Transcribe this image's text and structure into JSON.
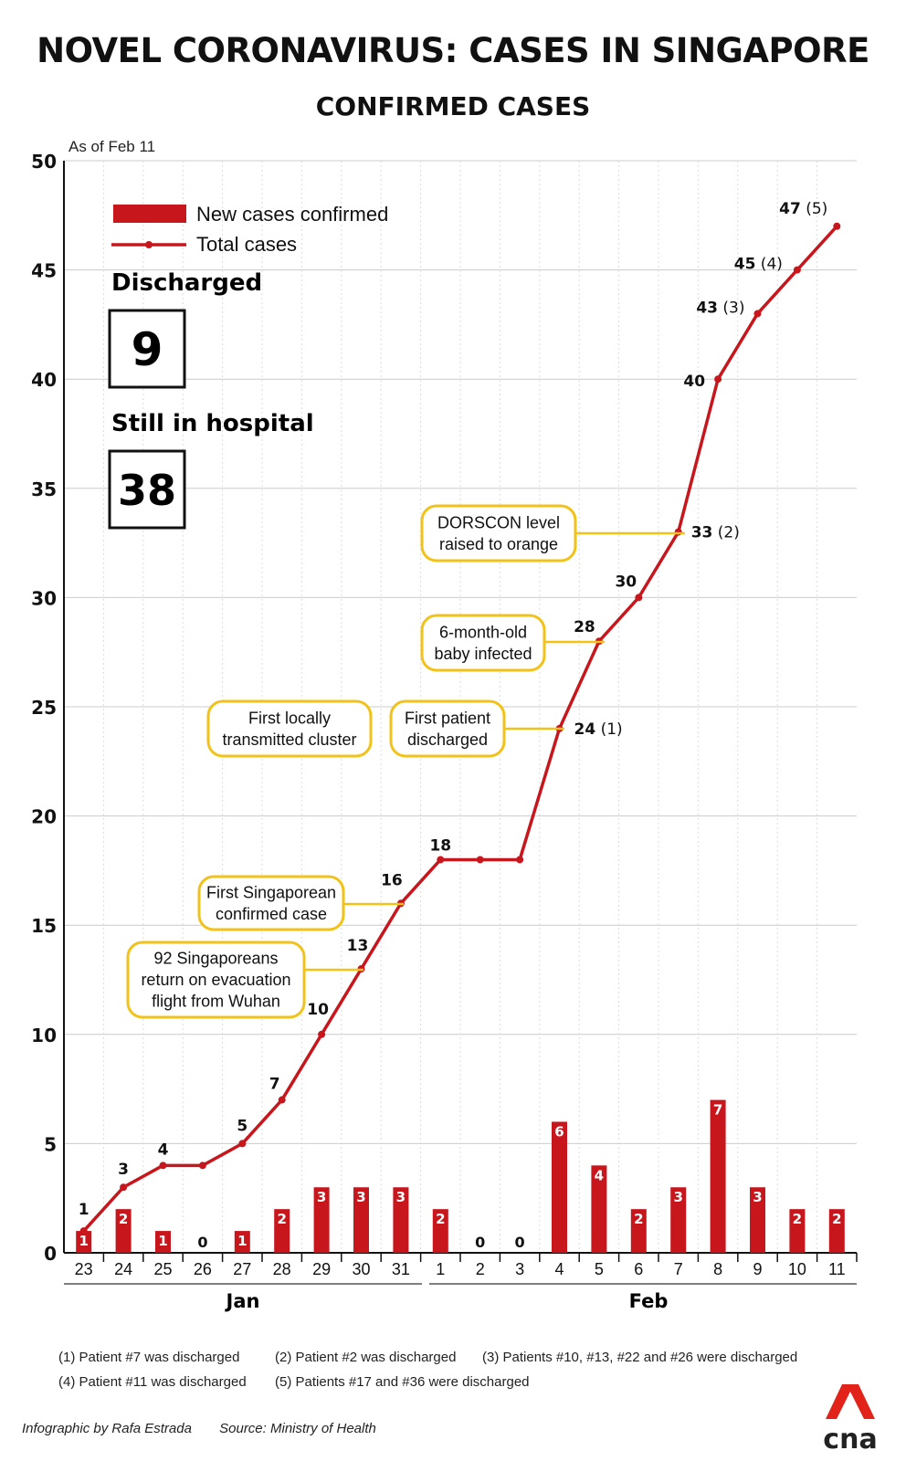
{
  "title": "NOVEL CORONAVIRUS: CASES IN SINGAPORE",
  "subtitle": "CONFIRMED CASES",
  "as_of": "As of Feb 11",
  "colors": {
    "accent": "#c8161d",
    "callout_border": "#f2c218",
    "grid": "#cccccc"
  },
  "stats": {
    "discharged_label": "Discharged",
    "discharged_value": "9",
    "hospital_label": "Still in hospital",
    "hospital_value": "38"
  },
  "month_labels": [
    "Jan",
    "Feb"
  ],
  "footnotes": [
    "(1) Patient #7 was discharged",
    "(2) Patient #2 was discharged",
    "(3) Patients #10, #13, #22 and #26 were discharged",
    "(4) Patient #11 was discharged",
    "(5) Patients #17 and #36 were discharged"
  ],
  "credit": "Infographic by Rafa Estrada",
  "source": "Source: Ministry of Health",
  "logo_text": "cna",
  "chart_data": {
    "type": "bar",
    "ylim": [
      0,
      50
    ],
    "yticks": [
      0,
      5,
      10,
      15,
      20,
      25,
      30,
      35,
      40,
      45,
      50
    ],
    "grid": true,
    "legend_position": "top-left",
    "categories": [
      "23",
      "24",
      "25",
      "26",
      "27",
      "28",
      "29",
      "30",
      "31",
      "1",
      "2",
      "3",
      "4",
      "5",
      "6",
      "7",
      "8",
      "9",
      "10",
      "11"
    ],
    "series": [
      {
        "name": "New cases confirmed",
        "type": "bar",
        "values": [
          1,
          2,
          1,
          0,
          1,
          2,
          3,
          3,
          3,
          2,
          0,
          0,
          6,
          4,
          2,
          3,
          7,
          3,
          2,
          2
        ]
      },
      {
        "name": "Total cases",
        "type": "line",
        "values": [
          1,
          3,
          4,
          4,
          5,
          7,
          10,
          13,
          16,
          18,
          18,
          18,
          24,
          28,
          30,
          33,
          40,
          43,
          45,
          47
        ],
        "labels": [
          "1",
          "3",
          "4",
          "",
          "5",
          "7",
          "10",
          "13",
          "16",
          "18",
          "",
          "",
          "24",
          "28",
          "30",
          "33",
          "40",
          "43",
          "45",
          "47"
        ],
        "notes": [
          "",
          "",
          "",
          "",
          "",
          "",
          "",
          "",
          "",
          "",
          "",
          "",
          "(1)",
          "",
          "",
          "(2)",
          "",
          "(3)",
          "(4)",
          "(5)"
        ]
      }
    ],
    "annotations": [
      {
        "text": [
          "92 Singaporeans",
          "return on evacuation",
          "flight from Wuhan"
        ],
        "index": 7
      },
      {
        "text": [
          "First Singaporean",
          "confirmed case"
        ],
        "index": 8
      },
      {
        "text": [
          "First locally",
          "transmitted cluster"
        ],
        "index": 12
      },
      {
        "text": [
          "First patient",
          "discharged"
        ],
        "index": 12
      },
      {
        "text": [
          "6-month-old",
          "baby infected"
        ],
        "index": 13
      },
      {
        "text": [
          "DORSCON level",
          "raised to orange"
        ],
        "index": 15
      }
    ]
  }
}
